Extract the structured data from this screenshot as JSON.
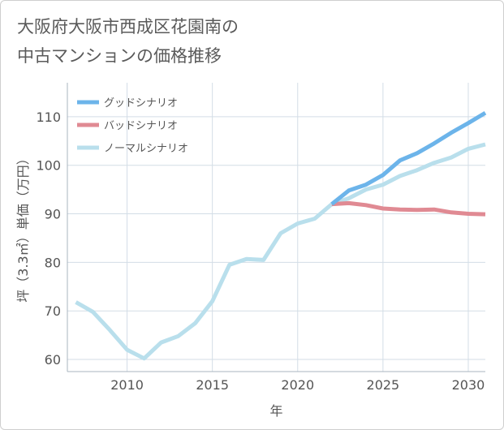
{
  "title": {
    "line1": "大阪府大阪市西成区花園南の",
    "line2": "中古マンションの価格推移"
  },
  "chart_data": {
    "type": "line",
    "xlabel": "年",
    "ylabel": "坪（3.3㎡）単価（万円）",
    "xlim": [
      2006.5,
      2031
    ],
    "ylim": [
      57.5,
      117
    ],
    "x_ticks": [
      2010,
      2015,
      2020,
      2025,
      2030
    ],
    "y_ticks": [
      60,
      70,
      80,
      90,
      100,
      110
    ],
    "grid": true,
    "legend_position": "top-left",
    "series": [
      {
        "name": "グッドシナリオ",
        "color": "#6cb4ea",
        "x": [
          2022,
          2023,
          2024,
          2025,
          2026,
          2027,
          2028,
          2029,
          2030,
          2031
        ],
        "y": [
          92.0,
          94.8,
          96.0,
          98.0,
          101.0,
          102.5,
          104.5,
          106.7,
          108.7,
          110.8
        ]
      },
      {
        "name": "バッドシナリオ",
        "color": "#e08a93",
        "x": [
          2022,
          2023,
          2024,
          2025,
          2026,
          2027,
          2028,
          2029,
          2030,
          2031
        ],
        "y": [
          92.0,
          92.2,
          91.8,
          91.1,
          90.9,
          90.8,
          90.9,
          90.3,
          90.0,
          89.9
        ]
      },
      {
        "name": "ノーマルシナリオ",
        "color": "#b9dfec",
        "x": [
          2007,
          2008,
          2009,
          2010,
          2011,
          2012,
          2013,
          2014,
          2015,
          2016,
          2017,
          2018,
          2019,
          2020,
          2021,
          2022,
          2023,
          2024,
          2025,
          2026,
          2027,
          2028,
          2029,
          2030,
          2031
        ],
        "y": [
          71.8,
          69.8,
          66.0,
          62.0,
          60.2,
          63.5,
          64.8,
          67.5,
          72.0,
          79.5,
          80.7,
          80.5,
          86.0,
          88.0,
          89.0,
          92.0,
          93.2,
          95.0,
          96.0,
          97.8,
          99.0,
          100.5,
          101.6,
          103.4,
          104.3
        ]
      }
    ]
  }
}
